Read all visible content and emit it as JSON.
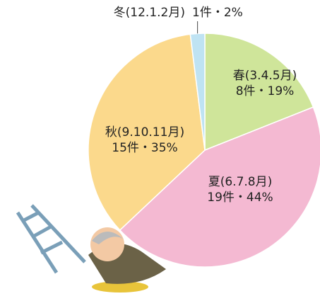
{
  "chart_data": {
    "type": "pie",
    "categories": [
      "春(3.4.5月)",
      "夏(6.7.8月)",
      "秋(9.10.11月)",
      "冬(12.1.2月)"
    ],
    "values": [
      19,
      44,
      35,
      2
    ],
    "value_labels": [
      "8件・19%",
      "19件・44%",
      "15件・35%",
      "1件・2%"
    ],
    "colors": [
      "#cfe59a",
      "#f4b9d2",
      "#fbd98c",
      "#bfe3f3"
    ]
  }
}
